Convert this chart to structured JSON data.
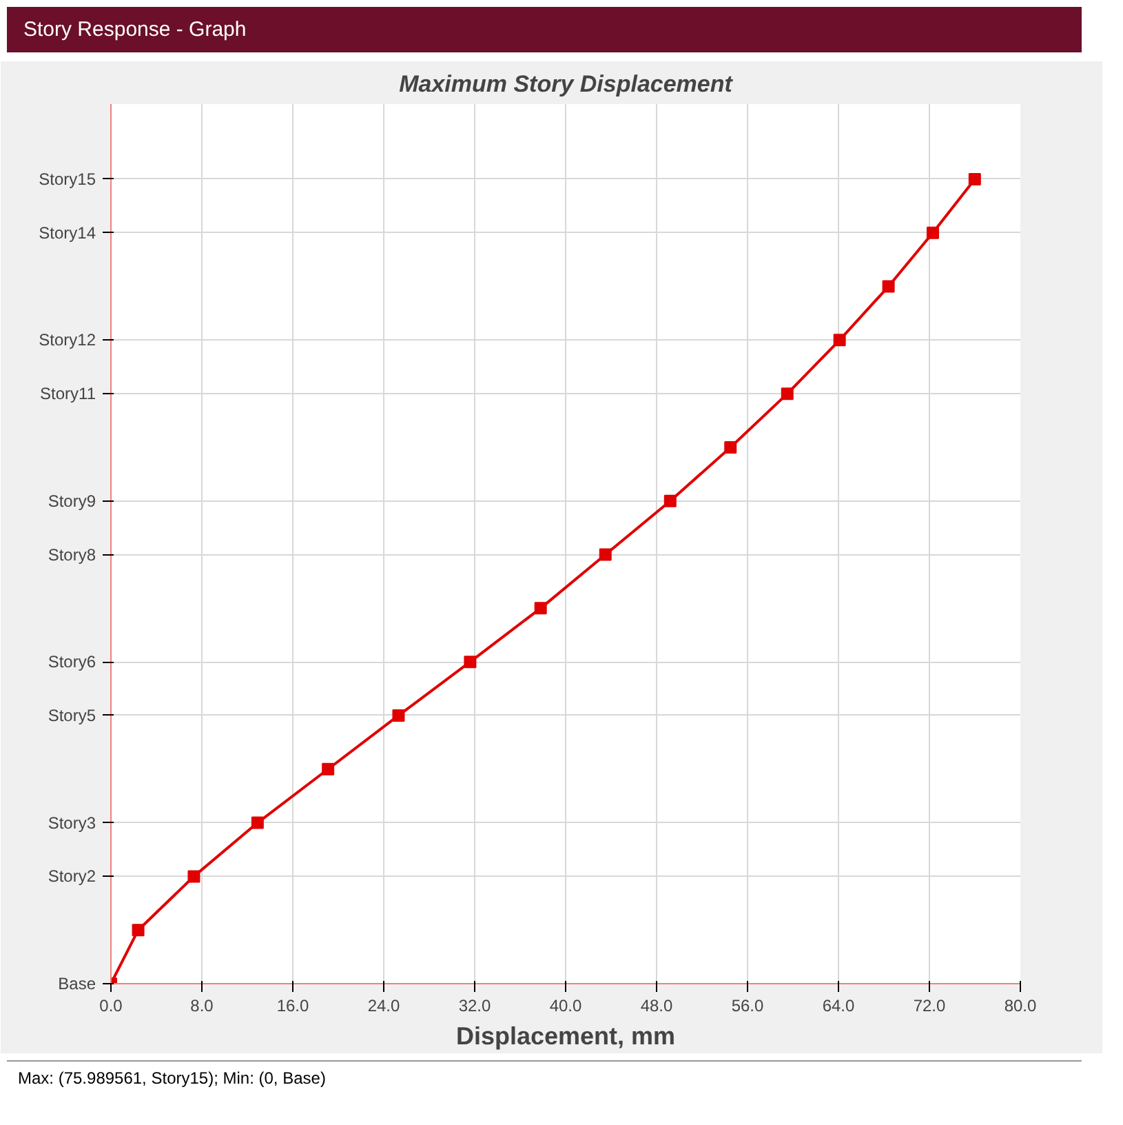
{
  "chart_data": {
    "type": "line",
    "orientation": "horizontal",
    "title": "Maximum Story Displacement",
    "xlabel": "Displacement, mm",
    "annotations": [
      "Story Response - Graph",
      "Max: (75.989561, Story15);  Min: (0, Base)"
    ],
    "categories": [
      "Story15",
      "Story14",
      null,
      "Story12",
      "Story11",
      null,
      "Story9",
      "Story8",
      null,
      "Story6",
      "Story5",
      null,
      "Story3",
      "Story2",
      null,
      "Base"
    ],
    "series": [
      {
        "color": "#e00000",
        "values": [
          75.989561,
          72.3,
          68.4,
          64.1,
          59.5,
          54.5,
          49.2,
          43.5,
          37.8,
          31.6,
          25.3,
          19.1,
          12.9,
          7.3,
          2.4,
          0
        ]
      }
    ],
    "xlim": [
      0,
      80
    ],
    "xticks": [
      {
        "value": 0,
        "label": "0.0"
      },
      {
        "value": 8,
        "label": "8.0"
      },
      {
        "value": 16,
        "label": "16.0"
      },
      {
        "value": 24,
        "label": "24.0"
      },
      {
        "value": 32,
        "label": "32.0"
      },
      {
        "value": 40,
        "label": "40.0"
      },
      {
        "value": 48,
        "label": "48.0"
      },
      {
        "value": 56,
        "label": "56.0"
      },
      {
        "value": 64,
        "label": "64.0"
      },
      {
        "value": 72,
        "label": "72.0"
      },
      {
        "value": 80,
        "label": "80.0"
      }
    ],
    "grid": true,
    "marker": "square",
    "line_style": "solid"
  }
}
